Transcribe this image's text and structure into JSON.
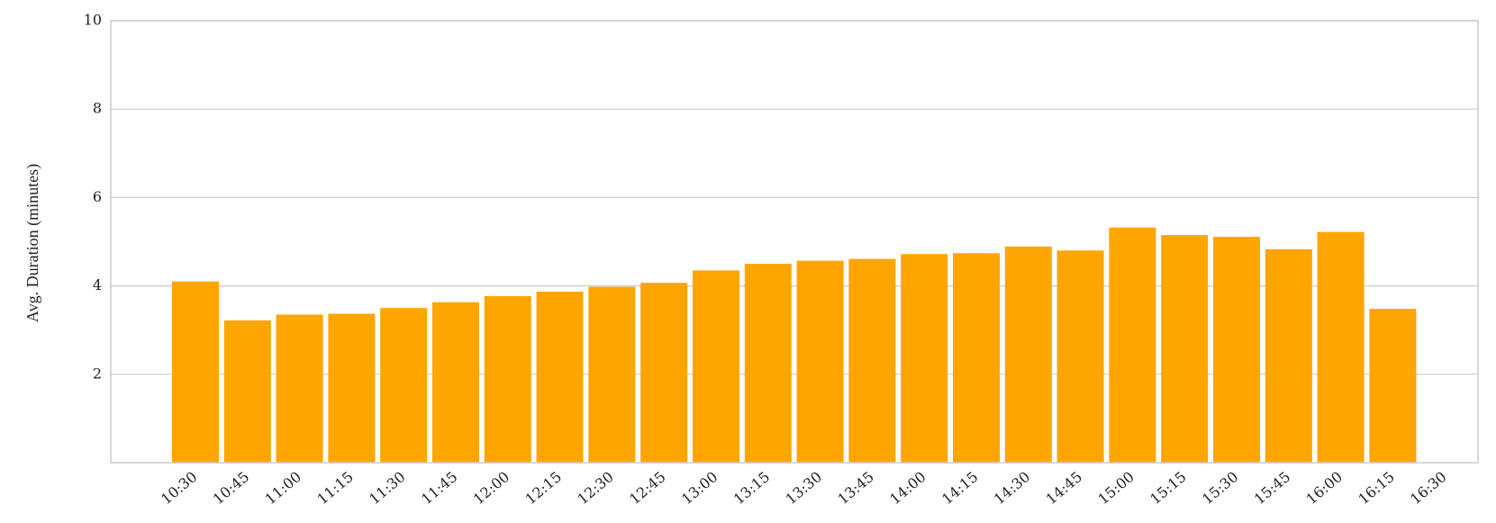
{
  "chart_data": {
    "type": "bar",
    "y_label": "Avg. Duration (minutes)",
    "categories": [
      "10:30",
      "10:45",
      "11:00",
      "11:15",
      "11:30",
      "11:45",
      "12:00",
      "12:15",
      "12:30",
      "12:45",
      "13:00",
      "13:15",
      "13:30",
      "13:45",
      "14:00",
      "14:15",
      "14:30",
      "14:45",
      "15:00",
      "15:15",
      "15:30",
      "15:45",
      "16:00",
      "16:15",
      "16:30"
    ],
    "values": [
      4.1,
      3.22,
      3.35,
      3.37,
      3.5,
      3.63,
      3.77,
      3.87,
      3.98,
      4.07,
      4.35,
      4.5,
      4.57,
      4.61,
      4.72,
      4.74,
      4.89,
      4.8,
      5.32,
      5.15,
      5.11,
      4.83,
      5.22,
      3.48,
      null
    ],
    "color": "#ffa500",
    "ylim": [
      0,
      10
    ],
    "yticks": [
      2,
      4,
      6,
      8,
      10
    ],
    "grid": true
  }
}
